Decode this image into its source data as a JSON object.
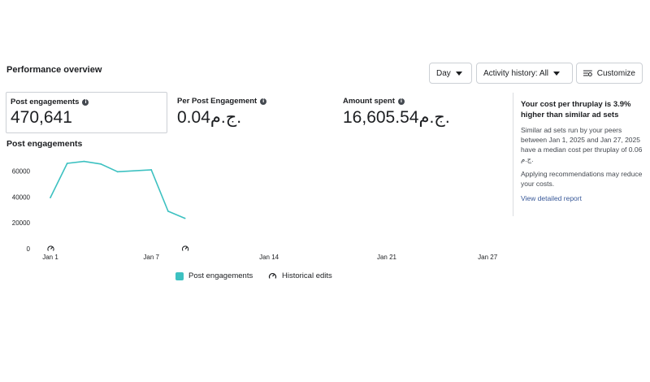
{
  "header": {
    "title": "Performance overview"
  },
  "controls": {
    "day_label": "Day",
    "activity_label": "Activity history: All",
    "customize_label": "Customize"
  },
  "metrics": [
    {
      "label": "Post engagements",
      "value": "470,641"
    },
    {
      "label": "Per Post Engagement",
      "value": "0.04ج.م."
    },
    {
      "label": "Amount spent",
      "value": "16,605.54ج.م."
    }
  ],
  "chart_title": "Post engagements",
  "chart_data": {
    "type": "line",
    "title": "Post engagements",
    "x_ticks": [
      "Jan 1",
      "Jan 7",
      "Jan 14",
      "Jan 21",
      "Jan 27"
    ],
    "y_ticks": [
      "0",
      "20000",
      "40000",
      "60000"
    ],
    "ylim": [
      0,
      70000
    ],
    "series": [
      {
        "name": "Post engagements",
        "color": "#3dc1c1",
        "x": [
          1,
          2,
          3,
          4,
          5,
          7,
          8,
          9
        ],
        "values": [
          39500,
          66000,
          67500,
          65500,
          59500,
          61000,
          29000,
          23500
        ]
      }
    ],
    "historical_edit_markers": [
      1,
      9
    ],
    "legend": [
      {
        "label": "Post engagements",
        "icon": "teal-square"
      },
      {
        "label": "Historical edits",
        "icon": "historical-edit-icon"
      }
    ]
  },
  "side_panel": {
    "headline": "Your cost per thruplay is 3.9% higher than similar ad sets",
    "body1": "Similar ad sets run by your peers between Jan 1, 2025 and Jan 27, 2025 have a median cost per thruplay of 0.06 ج.م.",
    "body2": "Applying recommendations may reduce your costs.",
    "link": "View detailed report"
  }
}
